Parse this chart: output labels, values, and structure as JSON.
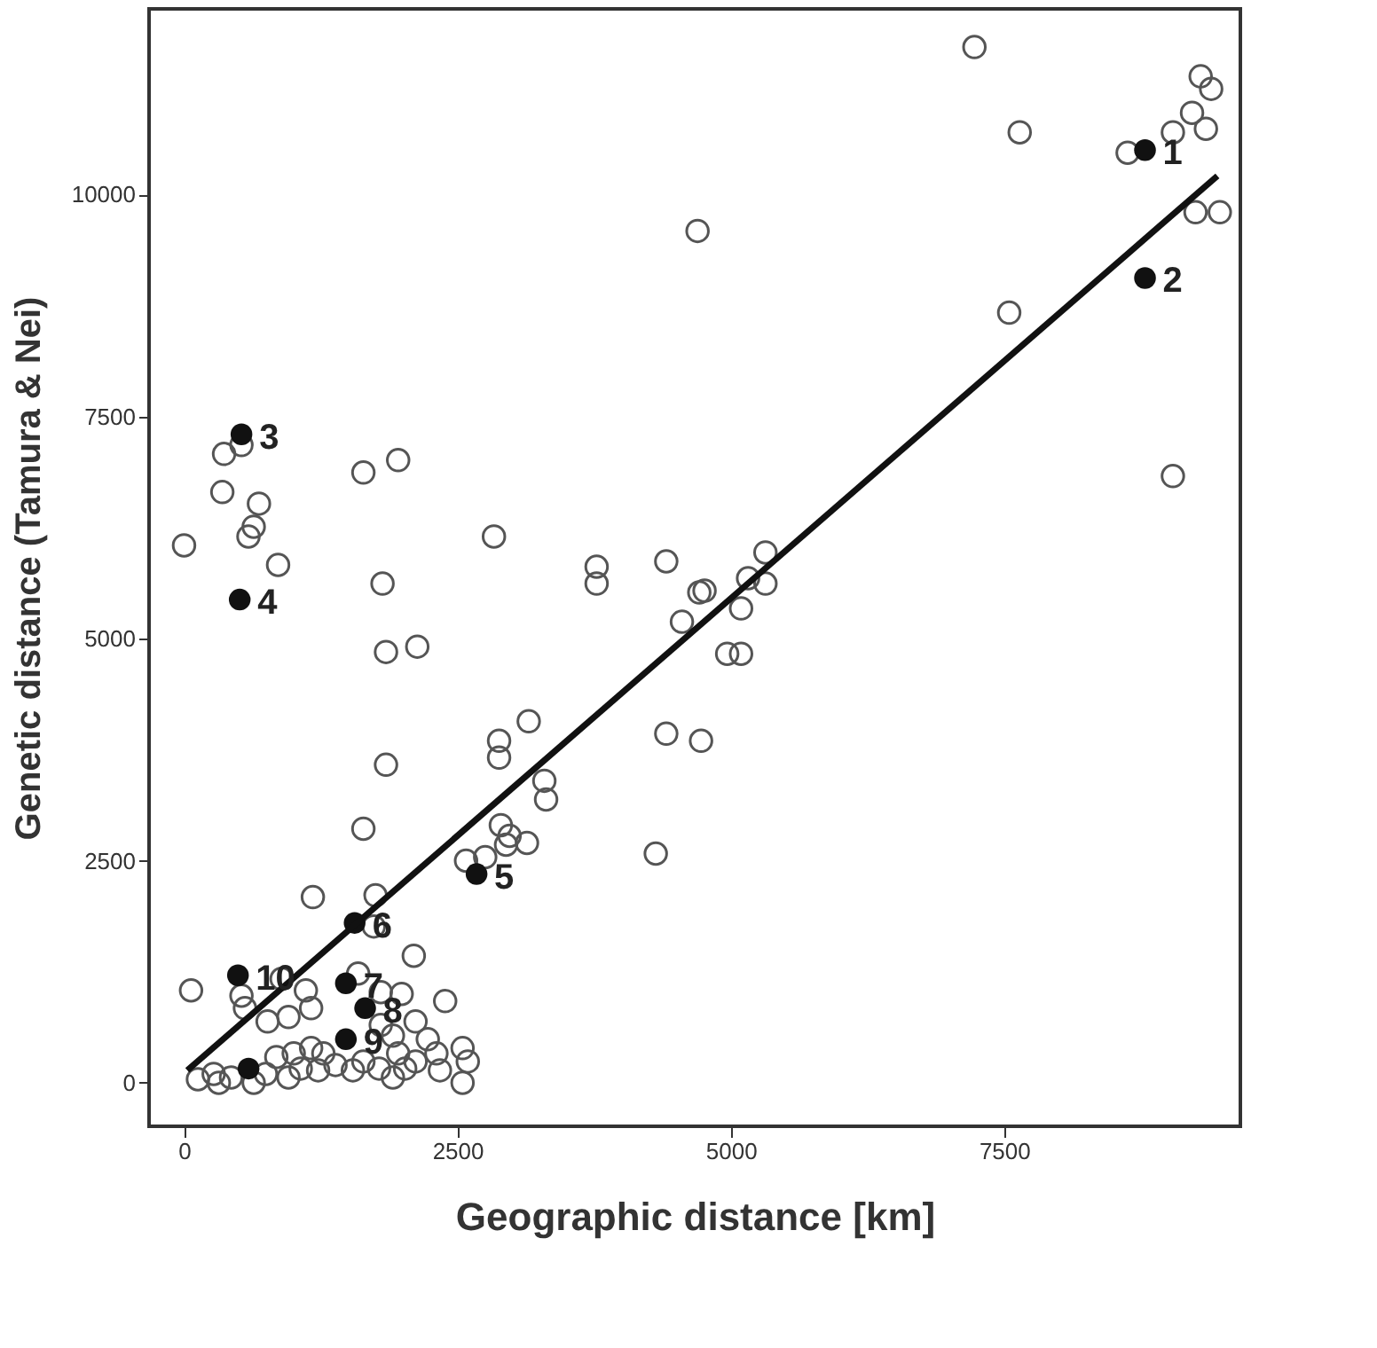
{
  "chart_data": {
    "type": "scatter",
    "xlabel": "Geographic distance [km]",
    "ylabel": "Genetic distance (Tamura & Nei)",
    "xlim": [
      -320,
      9660
    ],
    "ylim": [
      -490,
      12090
    ],
    "xticks": [
      0,
      2500,
      5000,
      7500
    ],
    "yticks": [
      0,
      2500,
      5000,
      7500,
      10000
    ],
    "grid": false,
    "series": [
      {
        "color": "#555555",
        "marker": "circle",
        "x": [
          4696,
          366,
          525,
          350,
          685,
          637,
          589,
          0,
          860,
          1640,
          1958,
          2834,
          4410,
          1815,
          1847,
          2133,
          3773,
          3773,
          4712,
          4553,
          4410,
          4728,
          1847,
          3152,
          2881,
          2881,
          3295,
          3311,
          1640,
          2897,
          2977,
          3136,
          2945,
          2579,
          2754,
          4314,
          1178,
          1751,
          1735,
          2101,
          64,
          2388,
          892,
          1114,
          1162,
          1592,
          1799,
          1990,
          525,
          557,
          764,
          955,
          2117,
          2229,
          1910,
          1799,
          1958,
          2117,
          2308,
          2547,
          2595,
          2547,
          2340,
          1910,
          1783,
          1640,
          1385,
          1544,
          1226,
          1067,
          955,
          748,
          637,
          430,
          271,
          127,
          318,
          1003,
          844,
          1162,
          1274,
          2022,
          4760,
          5158,
          5317,
          5317,
          5094,
          4967,
          5094,
          7228,
          7642,
          8629,
          9043,
          9218,
          9345,
          9297,
          9393,
          9250,
          9472,
          7546,
          9043
        ],
        "values": [
          9590,
          7080,
          7180,
          6650,
          6520,
          6260,
          6150,
          6050,
          5830,
          6870,
          7010,
          6150,
          5870,
          5620,
          4850,
          4910,
          5810,
          5620,
          5520,
          5190,
          3930,
          3850,
          3580,
          4070,
          3850,
          3660,
          3400,
          3190,
          2860,
          2900,
          2780,
          2700,
          2680,
          2500,
          2540,
          2580,
          2090,
          2110,
          1760,
          1430,
          1040,
          920,
          1170,
          1040,
          840,
          1230,
          1020,
          1000,
          980,
          840,
          690,
          740,
          690,
          490,
          530,
          650,
          330,
          240,
          330,
          390,
          240,
          0,
          140,
          60,
          160,
          240,
          200,
          140,
          140,
          160,
          60,
          100,
          0,
          60,
          100,
          40,
          0,
          330,
          290,
          390,
          330,
          160,
          5540,
          5680,
          5620,
          5970,
          5340,
          4830,
          4830,
          11660,
          10700,
          10470,
          10700,
          10920,
          10740,
          11330,
          11190,
          9800,
          9800,
          8670,
          6830
        ]
      },
      {
        "color": "#111111",
        "marker": "circle",
        "x": [
          8788,
          8788,
          525,
          509,
          2675,
          1560,
          1480,
          1656,
          1480,
          493,
          590
        ],
        "values": [
          10500,
          9060,
          7300,
          5440,
          2350,
          1800,
          1120,
          840,
          490,
          1210,
          160
        ]
      },
      {
        "type": "line",
        "color": "#111111",
        "line_style": "solid",
        "marker": "none",
        "x": [
          30,
          9450
        ],
        "values": [
          140,
          10210
        ]
      }
    ],
    "annotations": [
      {
        "text": "1",
        "x": 8788,
        "y": 10500
      },
      {
        "text": "2",
        "x": 8788,
        "y": 9060
      },
      {
        "text": "3",
        "x": 525,
        "y": 7300
      },
      {
        "text": "4",
        "x": 509,
        "y": 5440
      },
      {
        "text": "5",
        "x": 2675,
        "y": 2350
      },
      {
        "text": "6",
        "x": 1560,
        "y": 1800
      },
      {
        "text": "7",
        "x": 1480,
        "y": 1120
      },
      {
        "text": "8",
        "x": 1656,
        "y": 840
      },
      {
        "text": "9",
        "x": 1480,
        "y": 490
      },
      {
        "text": "10",
        "x": 493,
        "y": 1210
      }
    ]
  }
}
